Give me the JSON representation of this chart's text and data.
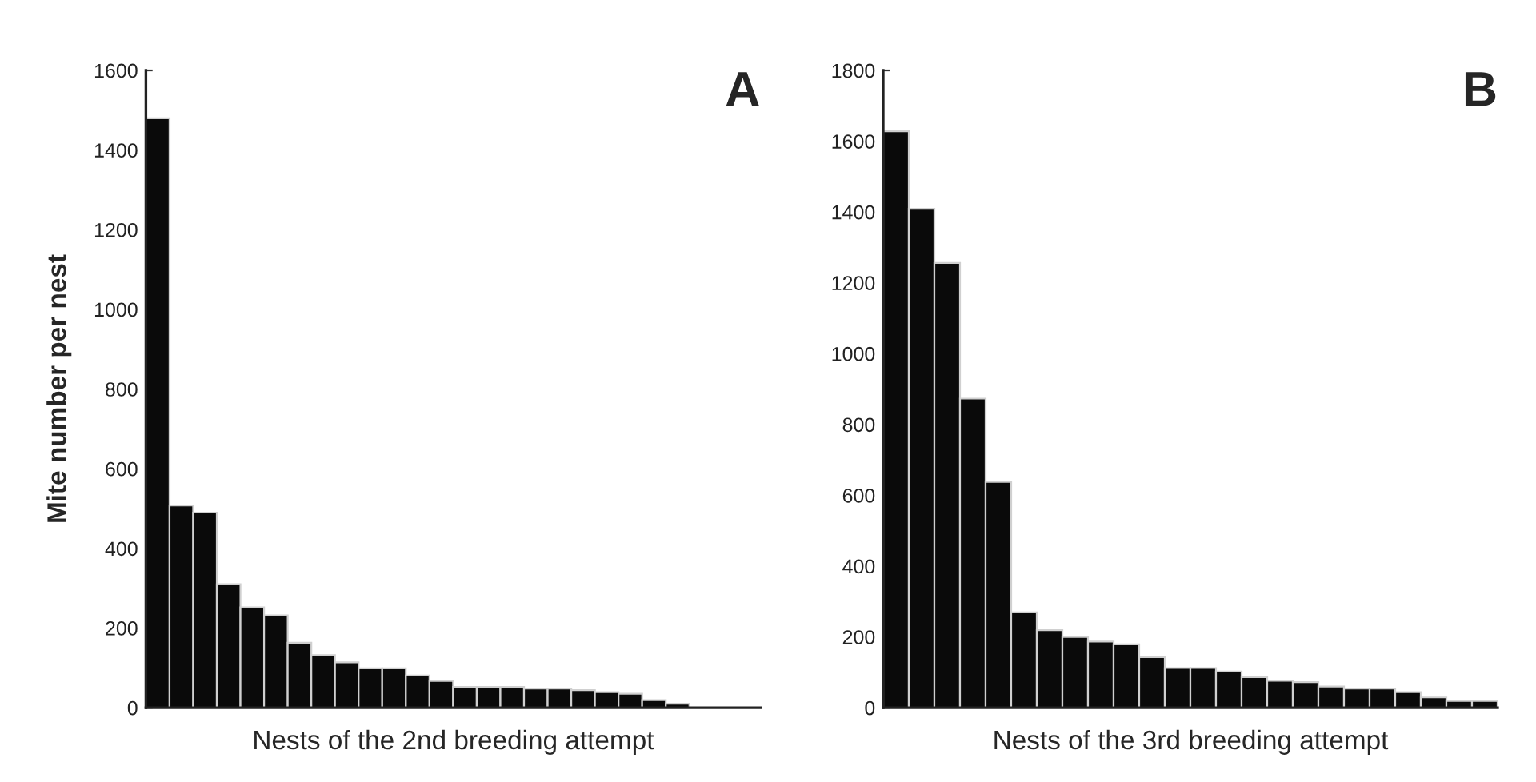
{
  "chart_data": [
    {
      "type": "bar",
      "title": "A",
      "xlabel": "Nests of the 2nd breeding attempt",
      "ylabel": "Mite number per nest",
      "color": "#0a0a0a",
      "categories": [
        null,
        null,
        null,
        null,
        null,
        null,
        null,
        null,
        null,
        null,
        null,
        null,
        null,
        null,
        null,
        null,
        null,
        null,
        null,
        null,
        null,
        null,
        null,
        null,
        null,
        null
      ],
      "values": [
        1480,
        508,
        490,
        310,
        252,
        232,
        163,
        132,
        114,
        99,
        99,
        81,
        67,
        52,
        52,
        52,
        48,
        48,
        44,
        39,
        35,
        19,
        10,
        null,
        null,
        null
      ],
      "ylim": [
        0,
        1600
      ],
      "yticks": [
        0,
        200,
        400,
        600,
        800,
        1000,
        1200,
        1400,
        1600
      ]
    },
    {
      "type": "bar",
      "title": "B",
      "xlabel": "Nests of the 3rd breeding attempt",
      "color": "#0a0a0a",
      "categories": [
        null,
        null,
        null,
        null,
        null,
        null,
        null,
        null,
        null,
        null,
        null,
        null,
        null,
        null,
        null,
        null,
        null,
        null,
        null,
        null,
        null,
        null,
        null,
        null
      ],
      "values": [
        1628,
        1409,
        1256,
        873,
        638,
        269,
        219,
        200,
        187,
        179,
        143,
        112,
        112,
        102,
        86,
        76,
        72,
        60,
        54,
        54,
        44,
        29,
        19,
        19
      ],
      "ylim": [
        0,
        1800
      ],
      "yticks": [
        0,
        200,
        400,
        600,
        800,
        1000,
        1200,
        1400,
        1600,
        1800
      ]
    }
  ]
}
